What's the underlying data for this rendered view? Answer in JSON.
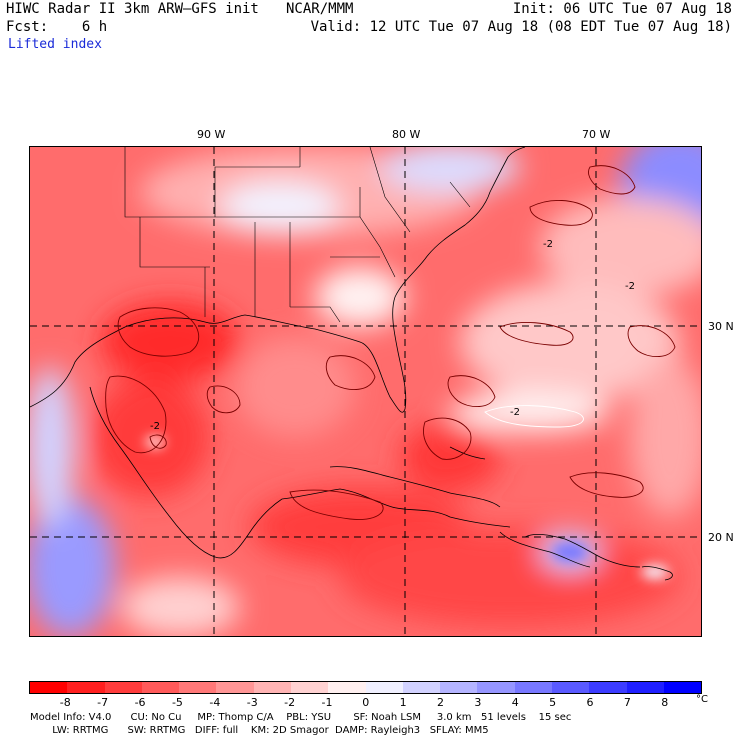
{
  "header": {
    "line1_left": "HIWC Radar II 3km ARW–GFS init",
    "center": "NCAR/MMM",
    "line2_left": "Fcst:    6 h",
    "variable": "Lifted index",
    "init": "Init: 06 UTC Tue 07 Aug 18",
    "valid": "Valid: 12 UTC Tue 07 Aug 18 (08 EDT Tue 07 Aug 18)"
  },
  "map": {
    "lon_labels": [
      "90 W",
      "80 W",
      "70 W"
    ],
    "lat_labels": [
      "30 N",
      "20 N"
    ],
    "contour_labels": [
      "-2",
      "-2",
      "-2",
      "-2"
    ]
  },
  "colorbar": {
    "ticks": [
      "-8",
      "-7",
      "-6",
      "-5",
      "-4",
      "-3",
      "-2",
      "-1",
      "0",
      "1",
      "2",
      "3",
      "4",
      "5",
      "6",
      "7",
      "8"
    ],
    "unit": "°C",
    "colors": [
      "#ff0000",
      "#ff1f1f",
      "#ff3c3c",
      "#ff5a5a",
      "#ff7878",
      "#ff9696",
      "#ffb4b4",
      "#ffd2d2",
      "#fff0f0",
      "#f0f0ff",
      "#d2d2ff",
      "#b4b4ff",
      "#9696ff",
      "#7878ff",
      "#5a5aff",
      "#3c3cff",
      "#1f1fff",
      "#0000ff"
    ]
  },
  "model_info": {
    "line1": "Model Info: V4.0      CU: No Cu     MP: Thomp C/A    PBL: YSU       SF: Noah LSM     3.0 km   51 levels    15 sec",
    "line2": "       LW: RRTMG      SW: RRTMG   DIFF: full    KM: 2D Smagor  DAMP: Rayleigh3   SFLAY: MM5"
  }
}
